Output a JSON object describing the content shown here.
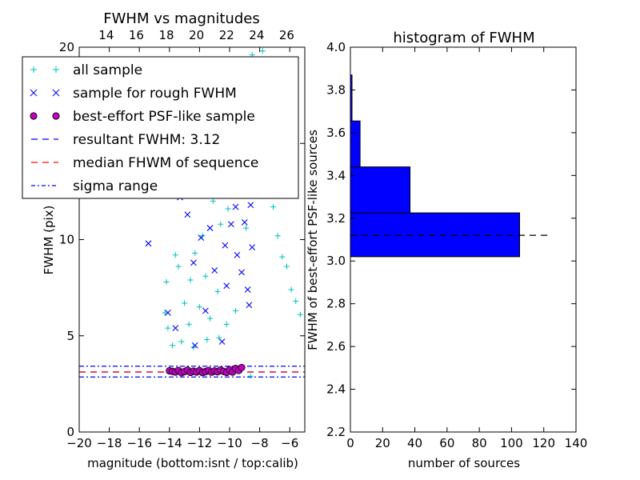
{
  "chart_data": [
    {
      "type": "scatter",
      "title": "FWHM vs magnitudes",
      "xlabel": "magnitude (bottom:isnt / top:calib)",
      "ylabel": "FWHM (pix)",
      "xlim": [
        -20,
        -5
      ],
      "ylim": [
        0,
        20
      ],
      "x_ticks": [
        "−20",
        "−18",
        "−16",
        "−14",
        "−12",
        "−10",
        "−8",
        "−6"
      ],
      "x_tick_values": [
        -20,
        -18,
        -16,
        -14,
        -12,
        -10,
        -8,
        -6
      ],
      "y_ticks": [
        "0",
        "5",
        "10",
        "15",
        "20"
      ],
      "y_tick_values": [
        0,
        5,
        10,
        15,
        20
      ],
      "top_axis": {
        "ticks": [
          "14",
          "16",
          "18",
          "20",
          "22",
          "24",
          "26"
        ],
        "tick_values": [
          14,
          16,
          18,
          20,
          22,
          24,
          26
        ],
        "offset": 32.2
      },
      "legend_position": "top-left",
      "legend": [
        {
          "label": "all sample",
          "marker": "+",
          "color": "#00bfbf"
        },
        {
          "label": "sample for rough FWHM",
          "marker": "x",
          "color": "#0000ff"
        },
        {
          "label": "best-effort PSF-like sample",
          "marker": "o",
          "color": "#bf00bf"
        },
        {
          "label": "resultant FWHM: 3.12",
          "marker": "dashed",
          "color": "#0000ff"
        },
        {
          "label": "median FHWM of sequence",
          "marker": "dashed",
          "color": "#ff0000"
        },
        {
          "label": "sigma range",
          "marker": "dashdot",
          "color": "#0000ff"
        }
      ],
      "series": [
        {
          "name": "all sample",
          "color": "#00bfbf",
          "marker": "+",
          "points": [
            [
              -14.2,
              7.8
            ],
            [
              -14.3,
              6.2
            ],
            [
              -14.1,
              5.4
            ],
            [
              -13.6,
              9.2
            ],
            [
              -13.4,
              8.6
            ],
            [
              -13.0,
              6.7
            ],
            [
              -12.7,
              5.6
            ],
            [
              -12.6,
              7.9
            ],
            [
              -12.3,
              9.3
            ],
            [
              -12.0,
              6.5
            ],
            [
              -11.8,
              10.2
            ],
            [
              -11.6,
              8.1
            ],
            [
              -11.3,
              5.9
            ],
            [
              -11.1,
              12.0
            ],
            [
              -10.8,
              7.3
            ],
            [
              -10.6,
              10.8
            ],
            [
              -10.4,
              13.1
            ],
            [
              -10.1,
              11.6
            ],
            [
              -9.9,
              15.4
            ],
            [
              -9.7,
              14.3
            ],
            [
              -9.5,
              16.0
            ],
            [
              -9.3,
              12.6
            ],
            [
              -9.1,
              18.2
            ],
            [
              -8.9,
              10.6
            ],
            [
              -8.7,
              16.9
            ],
            [
              -8.5,
              19.6
            ],
            [
              -8.2,
              12.4
            ],
            [
              -8.0,
              14.8
            ],
            [
              -7.8,
              19.8
            ],
            [
              -7.5,
              13.6
            ],
            [
              -7.1,
              11.7
            ],
            [
              -6.8,
              10.2
            ],
            [
              -6.5,
              9.1
            ],
            [
              -6.2,
              8.6
            ],
            [
              -5.9,
              7.4
            ],
            [
              -5.6,
              6.8
            ],
            [
              -5.3,
              6.1
            ],
            [
              -13.8,
              4.5
            ],
            [
              -13.2,
              4.7
            ],
            [
              -12.4,
              4.4
            ],
            [
              -11.5,
              4.8
            ],
            [
              -10.7,
              4.9
            ],
            [
              -10.2,
              5.6
            ],
            [
              -9.6,
              6.3
            ],
            [
              -8.6,
              2.9
            ]
          ]
        },
        {
          "name": "sample for rough FWHM",
          "color": "#0000ff",
          "marker": "x",
          "points": [
            [
              -15.4,
              9.8
            ],
            [
              -14.1,
              6.2
            ],
            [
              -13.6,
              5.4
            ],
            [
              -13.3,
              12.2
            ],
            [
              -12.8,
              11.3
            ],
            [
              -12.4,
              8.8
            ],
            [
              -12.3,
              4.5
            ],
            [
              -11.9,
              10.1
            ],
            [
              -11.6,
              6.3
            ],
            [
              -11.3,
              10.6
            ],
            [
              -11.0,
              8.4
            ],
            [
              -10.9,
              12.9
            ],
            [
              -10.8,
              14.2
            ],
            [
              -10.5,
              4.7
            ],
            [
              -10.3,
              9.7
            ],
            [
              -10.2,
              7.6
            ],
            [
              -10.0,
              12.4
            ],
            [
              -9.9,
              10.8
            ],
            [
              -9.8,
              15.6
            ],
            [
              -9.7,
              13.5
            ],
            [
              -9.6,
              11.7
            ],
            [
              -9.5,
              9.2
            ],
            [
              -9.4,
              16.3
            ],
            [
              -9.3,
              14.0
            ],
            [
              -9.2,
              8.3
            ],
            [
              -9.1,
              12.6
            ],
            [
              -9.0,
              10.9
            ],
            [
              -8.9,
              15.2
            ],
            [
              -8.8,
              7.4
            ],
            [
              -8.8,
              13.3
            ],
            [
              -8.7,
              6.6
            ],
            [
              -8.6,
              11.8
            ],
            [
              -8.5,
              9.6
            ],
            [
              -9.2,
              18.3
            ],
            [
              -9.6,
              17.1
            ],
            [
              -10.6,
              16.8
            ]
          ]
        },
        {
          "name": "best-effort PSF-like sample",
          "color": "#bf00bf",
          "marker": "o",
          "points": [
            [
              -14.0,
              3.18
            ],
            [
              -13.8,
              3.15
            ],
            [
              -13.6,
              3.12
            ],
            [
              -13.4,
              3.2
            ],
            [
              -13.2,
              3.08
            ],
            [
              -13.0,
              3.14
            ],
            [
              -12.8,
              3.22
            ],
            [
              -12.6,
              3.1
            ],
            [
              -12.4,
              3.16
            ],
            [
              -12.2,
              3.12
            ],
            [
              -12.0,
              3.19
            ],
            [
              -11.8,
              3.09
            ],
            [
              -11.6,
              3.14
            ],
            [
              -11.4,
              3.2
            ],
            [
              -11.2,
              3.11
            ],
            [
              -11.0,
              3.17
            ],
            [
              -10.8,
              3.13
            ],
            [
              -10.6,
              3.22
            ],
            [
              -10.4,
              3.15
            ],
            [
              -10.2,
              3.1
            ],
            [
              -10.0,
              3.24
            ],
            [
              -9.8,
              3.12
            ],
            [
              -9.6,
              3.3
            ],
            [
              -9.4,
              3.2
            ],
            [
              -9.2,
              3.35
            ]
          ]
        }
      ],
      "lines": [
        {
          "name": "resultant FWHM: 3.12",
          "y": 3.12,
          "style": "dashed",
          "color": "#0000ff"
        },
        {
          "name": "median FHWM of sequence",
          "y": 3.12,
          "style": "dashed",
          "color": "#ff0000"
        },
        {
          "name": "sigma range",
          "y": 3.42,
          "style": "dashdot",
          "color": "#0000ff"
        },
        {
          "name": "sigma range",
          "y": 2.86,
          "style": "dashdot",
          "color": "#0000ff"
        }
      ]
    },
    {
      "type": "bar",
      "orientation": "horizontal",
      "title": "histogram of FWHM",
      "xlabel": "number of sources",
      "ylabel": "FWHM of best-effort PSF-like sources",
      "xlim": [
        0,
        140
      ],
      "ylim": [
        2.2,
        4.0
      ],
      "x_ticks": [
        "0",
        "20",
        "40",
        "60",
        "80",
        "100",
        "120",
        "140"
      ],
      "x_tick_values": [
        0,
        20,
        40,
        60,
        80,
        100,
        120,
        140
      ],
      "y_ticks": [
        "2.2",
        "2.4",
        "2.6",
        "2.8",
        "3.0",
        "3.2",
        "3.4",
        "3.6",
        "3.8",
        "4.0"
      ],
      "y_tick_values": [
        2.2,
        2.4,
        2.6,
        2.8,
        3.0,
        3.2,
        3.4,
        3.6,
        3.8,
        4.0
      ],
      "bar_color": "#0000ff",
      "bins": [
        {
          "from": 3.02,
          "to": 3.225,
          "count": 105
        },
        {
          "from": 3.225,
          "to": 3.44,
          "count": 37
        },
        {
          "from": 3.44,
          "to": 3.655,
          "count": 6
        },
        {
          "from": 3.655,
          "to": 3.87,
          "count": 1
        }
      ],
      "reference_line": {
        "y": 3.12,
        "x_end": 125,
        "style": "dashed",
        "color": "#000000"
      }
    }
  ]
}
